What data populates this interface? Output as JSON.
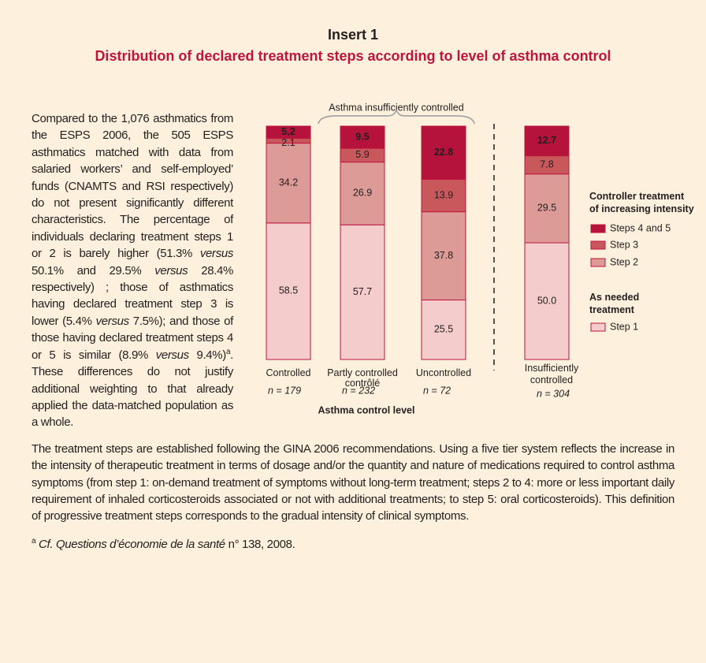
{
  "header": {
    "title": "Insert 1",
    "subtitle": "Distribution of declared treatment steps according to level of asthma control"
  },
  "paragraphs": [
    [
      "Compared to the 1,076 asthmatics from the ESPS 2006, the 505 ESPS asthmatics matched with data from salaried workers’ and self-employed’ funds (CNAMTS and RSI respectively) do not present significantly different characteristics. The percentage of individuals declaring treatment steps 1 or 2 is barely higher (51.3% ",
      {
        "text": "versus",
        "style": "em"
      },
      " 50.1% and 29.5% ",
      {
        "text": "versus",
        "style": "em"
      },
      " 28.4% respectively) ; those of asthmatics having declared treatment step 3 is lower (5.4% ",
      {
        "text": "versus",
        "style": "em"
      },
      " 7.5%); and those of those having declared treatment steps 4 or 5 is similar (8.9% ",
      {
        "text": "versus",
        "style": "em"
      },
      " 9.4%)",
      {
        "text": "a",
        "style": "sup"
      },
      ". These differences do not justify additional weighting to that already applied the data-matched population as a whole."
    ],
    [
      "The treatment steps are established following the GINA 2006 recommendations. Using a five tier system reflects the increase in the intensity of therapeutic treatment in terms of dosage and/or the quantity and nature of medications required to control asthma symptoms (from step 1: on-demand treatment of symptoms without long-term treatment; steps 2 to 4: more or less important daily requirement of inhaled corticosteroids associated or not with additional treatments; to step 5: oral corticosteroids). This definition of progressive treatment steps corresponds to the gradual intensity of clinical symptoms."
    ]
  ],
  "footnote": [
    {
      "text": "a",
      "style": "sup"
    },
    " ",
    {
      "text": "Cf. Questions d’économie de la santé",
      "style": "em"
    },
    " n° 138, 2008."
  ],
  "chart_data": {
    "type": "stacked_bar",
    "categories": [
      "Controlled",
      "Partly controlled\ncontrôlé",
      "Uncontrolled",
      "Insufficiently\ncontrolled"
    ],
    "n_labels": [
      "n = 179",
      "n = 232",
      "n = 72",
      "n = 304"
    ],
    "x_label": "Asthma control level",
    "annotation": "Asthma insufficiently controlled",
    "legend_titles": [
      "Controller treatment\nof increasing intensity",
      "As needed\ntreatment"
    ],
    "ylim": [
      0,
      100
    ],
    "series": [
      {
        "name": "Step 1",
        "color": "#f4cccb",
        "values": [
          58.5,
          57.7,
          25.5,
          50.0
        ],
        "value_labels": [
          "58.5",
          "57.7",
          "25.5",
          "50.0"
        ]
      },
      {
        "name": "Step 2",
        "color": "#dd9b97",
        "values": [
          34.2,
          26.9,
          37.8,
          29.5
        ]
      },
      {
        "name": "Step 3",
        "color": "#c9585c",
        "values": [
          2.1,
          5.9,
          13.9,
          7.8
        ]
      },
      {
        "name": "Steps 4 and 5",
        "color": "#b5123c",
        "values": [
          5.2,
          9.5,
          22.8,
          12.7
        ],
        "value_labels": [
          "5,2",
          "9.5",
          "22.8",
          "12.7"
        ]
      }
    ]
  }
}
